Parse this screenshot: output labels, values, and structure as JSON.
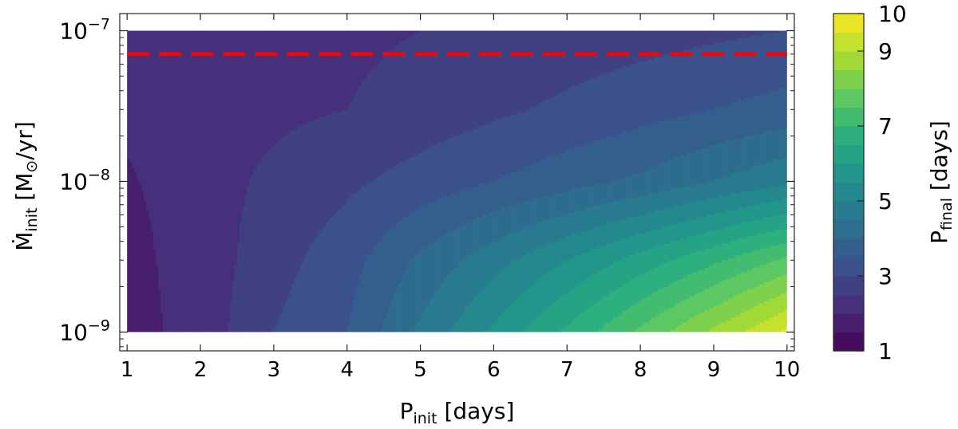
{
  "chart_data": [
    {
      "type": "heatmap",
      "subtype": "filled-contour",
      "xlabel": {
        "main": "P",
        "sub": "init",
        "rest": " [days]"
      },
      "ylabel": {
        "dot": "Ṁ",
        "sub": "init",
        "rest": " [M",
        "sub2": "⊙",
        "rest2": "/yr]"
      },
      "xlim": [
        0.9,
        10.1
      ],
      "ylim": [
        7.5e-10,
        1.3e-07
      ],
      "yscale": "log",
      "xticks": [
        1,
        2,
        3,
        4,
        5,
        6,
        7,
        8,
        9,
        10
      ],
      "xtick_labels": [
        "1",
        "2",
        "3",
        "4",
        "5",
        "6",
        "7",
        "8",
        "9",
        "10"
      ],
      "yticks": [
        {
          "value": 1e-09,
          "base": "10",
          "exp": "−9"
        },
        {
          "value": 1e-08,
          "base": "10",
          "exp": "−8"
        },
        {
          "value": 1e-07,
          "base": "10",
          "exp": "−7"
        }
      ],
      "grid": false,
      "data_extent": {
        "x": [
          1,
          10
        ],
        "y": [
          1e-09,
          1e-07
        ]
      },
      "levels": [
        1.5,
        2.0,
        2.5,
        3.0,
        3.5,
        4.0,
        4.5,
        5.0,
        5.5,
        6.0,
        6.5,
        7.0,
        7.5,
        8.0,
        8.5,
        9.0,
        9.5
      ],
      "p_final_samples": {
        "x": [
          1,
          1.5,
          2,
          3,
          4,
          5,
          6,
          7,
          8,
          9,
          10
        ],
        "y": [
          1e-09,
          3e-09,
          1e-08,
          3e-08,
          1e-07
        ],
        "z": [
          [
            1.5,
            2.0,
            2.2,
            3.0,
            3.5,
            4.6,
            5.6,
            6.6,
            7.6,
            8.6,
            9.6
          ],
          [
            1.6,
            2.1,
            2.2,
            2.8,
            3.3,
            4.1,
            4.8,
            5.5,
            6.2,
            6.9,
            7.6
          ],
          [
            1.9,
            2.2,
            2.3,
            2.6,
            2.9,
            3.2,
            3.5,
            3.8,
            4.1,
            4.5,
            4.9
          ],
          [
            2.2,
            2.3,
            2.3,
            2.4,
            2.5,
            2.7,
            2.9,
            3.1,
            3.3,
            3.5,
            3.7
          ],
          [
            2.3,
            2.3,
            2.3,
            2.4,
            2.4,
            2.5,
            2.6,
            2.7,
            2.8,
            2.9,
            3.0
          ]
        ]
      },
      "reference_line": {
        "y": 7e-08,
        "color": "#ff0000",
        "style": "dashed"
      },
      "colorbar": {
        "label": {
          "main": "P",
          "sub": "final",
          "rest": " [days]"
        },
        "range": [
          1,
          10
        ],
        "ticks": [
          1,
          3,
          5,
          7,
          9,
          10
        ],
        "tick_labels": [
          "1",
          "3",
          "5",
          "7",
          "9",
          "10"
        ],
        "colormap": "viridis"
      }
    }
  ]
}
